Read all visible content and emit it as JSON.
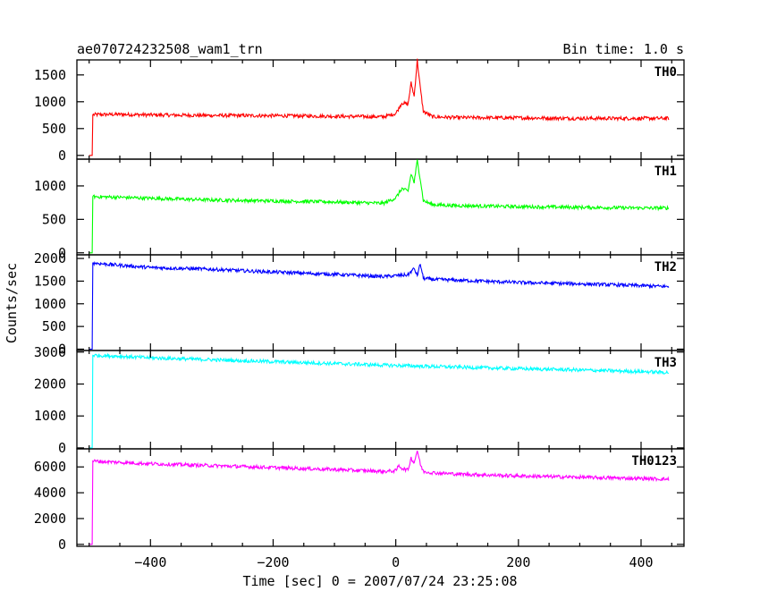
{
  "title_left": "ae070724232508_wam1_trn",
  "title_right": "Bin time: 1.0 s",
  "ylabel": "Counts/sec",
  "xlabel": "Time [sec] 0 = 2007/07/24 23:25:08",
  "x_ticks": [
    "−400",
    "−200",
    "0",
    "200",
    "400"
  ],
  "chart_data": {
    "type": "line",
    "title": "ae070724232508_wam1_trn",
    "subtitle": "Bin time: 1.0 s",
    "xlabel": "Time [sec] 0 = 2007/07/24 23:25:08",
    "ylabel": "Counts/sec",
    "xlim": [
      -520,
      470
    ],
    "x_tick_values": [
      -400,
      -200,
      0,
      200,
      400
    ],
    "grid": false,
    "panels": [
      {
        "name": "TH0",
        "color": "#ff0000",
        "ylim": [
          -70,
          1780
        ],
        "y_ticks": [
          "0",
          "500",
          "1000",
          "1500"
        ],
        "y_tick_values": [
          0,
          500,
          1000,
          1500
        ],
        "points": [
          [
            -500,
            0
          ],
          [
            -495,
            0
          ],
          [
            -494,
            760
          ],
          [
            -450,
            765
          ],
          [
            -400,
            755
          ],
          [
            -300,
            745
          ],
          [
            -200,
            740
          ],
          [
            -100,
            730
          ],
          [
            -20,
            720
          ],
          [
            0,
            780
          ],
          [
            10,
            980
          ],
          [
            20,
            950
          ],
          [
            25,
            1350
          ],
          [
            30,
            1100
          ],
          [
            35,
            1780
          ],
          [
            40,
            1250
          ],
          [
            45,
            820
          ],
          [
            60,
            720
          ],
          [
            100,
            705
          ],
          [
            200,
            700
          ],
          [
            300,
            690
          ],
          [
            400,
            690
          ],
          [
            445,
            690
          ]
        ]
      },
      {
        "name": "TH1",
        "color": "#00ff00",
        "ylim": [
          -30,
          1400
        ],
        "y_ticks": [
          "0",
          "500",
          "1000"
        ],
        "y_tick_values": [
          0,
          500,
          1000
        ],
        "points": [
          [
            -500,
            0
          ],
          [
            -495,
            0
          ],
          [
            -494,
            840
          ],
          [
            -450,
            830
          ],
          [
            -400,
            815
          ],
          [
            -300,
            790
          ],
          [
            -200,
            775
          ],
          [
            -100,
            760
          ],
          [
            -20,
            740
          ],
          [
            0,
            820
          ],
          [
            10,
            960
          ],
          [
            20,
            920
          ],
          [
            25,
            1180
          ],
          [
            30,
            1050
          ],
          [
            35,
            1380
          ],
          [
            40,
            1100
          ],
          [
            45,
            780
          ],
          [
            60,
            720
          ],
          [
            100,
            705
          ],
          [
            200,
            690
          ],
          [
            300,
            680
          ],
          [
            400,
            670
          ],
          [
            445,
            670
          ]
        ]
      },
      {
        "name": "TH2",
        "color": "#0000ff",
        "ylim": [
          -30,
          2080
        ],
        "y_ticks": [
          "0",
          "500",
          "1000",
          "1500",
          "2000"
        ],
        "y_tick_values": [
          0,
          500,
          1000,
          1500,
          2000
        ],
        "points": [
          [
            -500,
            0
          ],
          [
            -495,
            0
          ],
          [
            -494,
            1900
          ],
          [
            -450,
            1850
          ],
          [
            -400,
            1800
          ],
          [
            -300,
            1760
          ],
          [
            -200,
            1700
          ],
          [
            -100,
            1650
          ],
          [
            -20,
            1600
          ],
          [
            0,
            1620
          ],
          [
            20,
            1640
          ],
          [
            30,
            1780
          ],
          [
            35,
            1620
          ],
          [
            40,
            1880
          ],
          [
            45,
            1560
          ],
          [
            60,
            1540
          ],
          [
            100,
            1520
          ],
          [
            200,
            1470
          ],
          [
            300,
            1440
          ],
          [
            400,
            1400
          ],
          [
            445,
            1380
          ]
        ]
      },
      {
        "name": "TH3",
        "color": "#00ffff",
        "ylim": [
          -30,
          3050
        ],
        "y_ticks": [
          "0",
          "1000",
          "2000",
          "3000"
        ],
        "y_tick_values": [
          0,
          1000,
          2000,
          3000
        ],
        "points": [
          [
            -500,
            0
          ],
          [
            -495,
            0
          ],
          [
            -494,
            2900
          ],
          [
            -450,
            2870
          ],
          [
            -400,
            2820
          ],
          [
            -300,
            2760
          ],
          [
            -200,
            2700
          ],
          [
            -100,
            2640
          ],
          [
            0,
            2580
          ],
          [
            100,
            2530
          ],
          [
            200,
            2480
          ],
          [
            300,
            2440
          ],
          [
            400,
            2390
          ],
          [
            445,
            2360
          ]
        ]
      },
      {
        "name": "TH0123",
        "color": "#ff00ff",
        "ylim": [
          -150,
          7400
        ],
        "y_ticks": [
          "0",
          "2000",
          "4000",
          "6000"
        ],
        "y_tick_values": [
          0,
          2000,
          4000,
          6000
        ],
        "points": [
          [
            -500,
            0
          ],
          [
            -495,
            0
          ],
          [
            -494,
            6450
          ],
          [
            -450,
            6350
          ],
          [
            -400,
            6250
          ],
          [
            -300,
            6100
          ],
          [
            -200,
            5950
          ],
          [
            -100,
            5800
          ],
          [
            -20,
            5650
          ],
          [
            0,
            5700
          ],
          [
            5,
            6100
          ],
          [
            10,
            5900
          ],
          [
            20,
            5750
          ],
          [
            25,
            6700
          ],
          [
            30,
            6300
          ],
          [
            35,
            7300
          ],
          [
            40,
            6200
          ],
          [
            45,
            5650
          ],
          [
            60,
            5550
          ],
          [
            100,
            5450
          ],
          [
            200,
            5300
          ],
          [
            300,
            5200
          ],
          [
            400,
            5100
          ],
          [
            445,
            5050
          ]
        ]
      }
    ]
  }
}
